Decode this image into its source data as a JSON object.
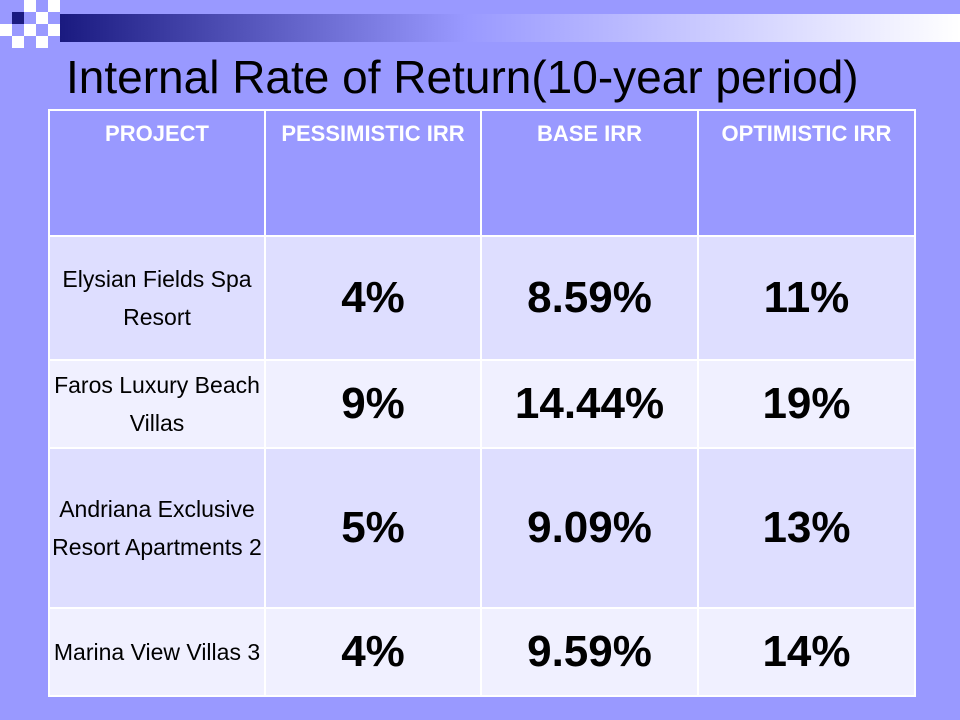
{
  "title": "Internal Rate of Return(10-year period)",
  "colors": {
    "background": "#9999ff",
    "header_text": "#ffffff",
    "row_odd": "#dedeff",
    "row_even": "#f0f0ff"
  },
  "table": {
    "headers": [
      "PROJECT",
      "PESSIMISTIC IRR",
      "BASE IRR",
      "OPTIMISTIC IRR"
    ],
    "rows": [
      {
        "project": "Elysian Fields Spa Resort",
        "pessimistic": "4%",
        "base": "8.59%",
        "optimistic": "11%"
      },
      {
        "project": "Faros Luxury Beach Villas",
        "pessimistic": "9%",
        "base": "14.44%",
        "optimistic": "19%"
      },
      {
        "project": "Andriana Exclusive Resort Apartments 2",
        "pessimistic": "5%",
        "base": "9.09%",
        "optimistic": "13%"
      },
      {
        "project": "Marina View Villas 3",
        "pessimistic": "4%",
        "base": "9.59%",
        "optimistic": "14%"
      }
    ]
  }
}
